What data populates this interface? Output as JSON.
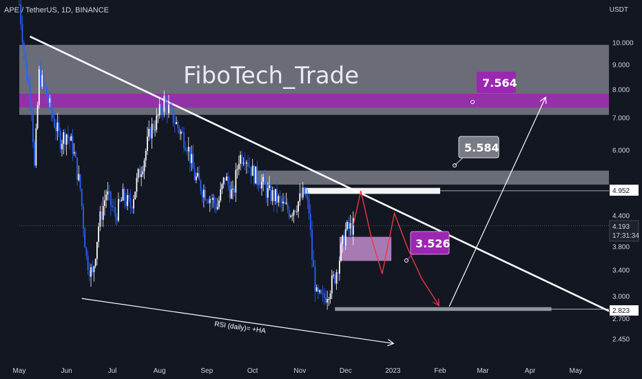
{
  "header": {
    "symbol": "APE / TetherUS, 1D, BINANCE",
    "currency": "USDT"
  },
  "watermark": "FiboTech_Trade",
  "colors": {
    "background": "#131722",
    "candle_up": "#ffffff",
    "candle_down": "#2962ff",
    "trendline": "#ffffff",
    "projection": "#f23645",
    "purple": "#9c27b0",
    "gray_zone": "#b2b5be"
  },
  "annotations": {
    "target_top": "7.564",
    "target_mid": "5.584",
    "target_low": "3.526",
    "rsi_note": "RSI (daily)= +HA"
  },
  "price_labels": {
    "level_4952": "4.952",
    "last_price": "4.193",
    "countdown": "17:31:34",
    "level_2823": "2.823"
  },
  "chart_data": {
    "type": "candlestick",
    "symbol": "APE / TetherUS",
    "interval": "1D",
    "exchange": "BINANCE",
    "y_scale": "log",
    "ylim": [
      2.3,
      14.5
    ],
    "x_range": [
      "2022-05-01",
      "2023-05-31"
    ],
    "x_ticks": [
      {
        "date": "2022-05-01",
        "label": "May"
      },
      {
        "date": "2022-06-01",
        "label": "Jun"
      },
      {
        "date": "2022-07-01",
        "label": "Jul"
      },
      {
        "date": "2022-08-01",
        "label": "Aug"
      },
      {
        "date": "2022-09-01",
        "label": "Sep"
      },
      {
        "date": "2022-10-01",
        "label": "Oct"
      },
      {
        "date": "2022-11-01",
        "label": "Nov"
      },
      {
        "date": "2022-12-01",
        "label": "Dec"
      },
      {
        "date": "2023-01-01",
        "label": "2023"
      },
      {
        "date": "2023-02-01",
        "label": "Feb"
      },
      {
        "date": "2023-03-01",
        "label": "Mar"
      },
      {
        "date": "2023-04-01",
        "label": "Apr"
      },
      {
        "date": "2023-05-01",
        "label": "May"
      }
    ],
    "y_ticks": [
      {
        "value": 10.0,
        "label": "10.000"
      },
      {
        "value": 9.0,
        "label": "9.000"
      },
      {
        "value": 8.0,
        "label": "8.000"
      },
      {
        "value": 7.0,
        "label": "7.000"
      },
      {
        "value": 6.0,
        "label": "6.000"
      },
      {
        "value": 4.4,
        "label": "4.400"
      },
      {
        "value": 3.8,
        "label": "3.800"
      },
      {
        "value": 3.4,
        "label": "3.400"
      },
      {
        "value": 3.0,
        "label": "3.000"
      },
      {
        "value": 2.7,
        "label": "2.700"
      },
      {
        "value": 2.45,
        "label": "2.450"
      }
    ],
    "price_path": [
      [
        "2022-05-01",
        12.0
      ],
      [
        "2022-05-05",
        9.0
      ],
      [
        "2022-05-09",
        7.5
      ],
      [
        "2022-05-11",
        5.5
      ],
      [
        "2022-05-14",
        8.6
      ],
      [
        "2022-05-18",
        8.0
      ],
      [
        "2022-05-23",
        7.0
      ],
      [
        "2022-05-28",
        6.3
      ],
      [
        "2022-06-01",
        6.5
      ],
      [
        "2022-06-05",
        6.1
      ],
      [
        "2022-06-10",
        5.0
      ],
      [
        "2022-06-14",
        3.6
      ],
      [
        "2022-06-18",
        3.3
      ],
      [
        "2022-06-22",
        4.2
      ],
      [
        "2022-06-27",
        4.9
      ],
      [
        "2022-07-03",
        4.4
      ],
      [
        "2022-07-08",
        4.8
      ],
      [
        "2022-07-13",
        4.6
      ],
      [
        "2022-07-18",
        5.3
      ],
      [
        "2022-07-22",
        5.8
      ],
      [
        "2022-07-26",
        6.6
      ],
      [
        "2022-07-30",
        6.9
      ],
      [
        "2022-08-04",
        7.6
      ],
      [
        "2022-08-09",
        7.1
      ],
      [
        "2022-08-14",
        6.6
      ],
      [
        "2022-08-19",
        6.2
      ],
      [
        "2022-08-24",
        5.3
      ],
      [
        "2022-08-29",
        5.0
      ],
      [
        "2022-09-03",
        4.8
      ],
      [
        "2022-09-08",
        4.6
      ],
      [
        "2022-09-13",
        5.3
      ],
      [
        "2022-09-18",
        4.8
      ],
      [
        "2022-09-22",
        5.8
      ],
      [
        "2022-09-26",
        5.9
      ],
      [
        "2022-10-01",
        5.4
      ],
      [
        "2022-10-06",
        5.2
      ],
      [
        "2022-10-11",
        4.9
      ],
      [
        "2022-10-16",
        4.8
      ],
      [
        "2022-10-21",
        4.6
      ],
      [
        "2022-10-26",
        4.5
      ],
      [
        "2022-10-31",
        4.7
      ],
      [
        "2022-11-04",
        4.9
      ],
      [
        "2022-11-07",
        4.5
      ],
      [
        "2022-11-09",
        3.6
      ],
      [
        "2022-11-12",
        3.0
      ],
      [
        "2022-11-16",
        2.95
      ],
      [
        "2022-11-20",
        3.1
      ],
      [
        "2022-11-24",
        3.3
      ],
      [
        "2022-11-27",
        3.6
      ],
      [
        "2022-12-01",
        4.1
      ],
      [
        "2022-12-04",
        4.15
      ],
      [
        "2022-12-06",
        4.19
      ]
    ],
    "zones": [
      {
        "name": "upper-resistance",
        "from_price": 7.1,
        "to_price": 9.9,
        "start": "2022-05-01",
        "end": "2023-05-31",
        "color": "#b2b5be"
      },
      {
        "name": "purple-band",
        "from_price": 7.35,
        "to_price": 7.85,
        "start": "2022-05-01",
        "end": "2023-05-31",
        "color": "#9c27b0"
      },
      {
        "name": "mid-resistance",
        "from_price": 5.1,
        "to_price": 5.45,
        "start": "2022-10-03",
        "end": "2023-05-31",
        "color": "#b2b5be"
      },
      {
        "name": "white-band",
        "from_price": 4.88,
        "to_price": 5.02,
        "start": "2022-11-04",
        "end": "2023-02-01",
        "color": "#ffffff"
      },
      {
        "name": "purple-box",
        "from_price": 3.55,
        "to_price": 3.98,
        "start": "2022-11-27",
        "end": "2022-12-31",
        "color": "#ce93d8"
      },
      {
        "name": "support-bar",
        "from_price": 2.8,
        "to_price": 2.85,
        "start": "2022-11-24",
        "end": "2023-04-15",
        "color": "#b2b5be"
      }
    ],
    "horizontal_lines": [
      {
        "price": 4.952,
        "start": "2023-02-01"
      },
      {
        "price": 4.193,
        "start": "2022-05-01"
      },
      {
        "price": 2.823,
        "start": "2023-04-15"
      }
    ],
    "trendlines": [
      {
        "name": "descending-resistance",
        "from": [
          "2022-05-08",
          10.3
        ],
        "to": [
          "2023-05-31",
          2.72
        ]
      },
      {
        "name": "rsi-divergence",
        "from": [
          "2022-06-11",
          2.97
        ],
        "to": [
          "2023-01-01",
          2.4
        ],
        "arrow": true
      }
    ],
    "projection_path": [
      [
        "2022-12-06",
        4.2
      ],
      [
        "2022-12-11",
        4.95
      ],
      [
        "2022-12-18",
        3.95
      ],
      [
        "2022-12-25",
        3.34
      ],
      [
        "2023-01-02",
        4.45
      ],
      [
        "2023-01-11",
        3.75
      ],
      [
        "2023-01-20",
        3.26
      ],
      [
        "2023-01-31",
        2.88
      ]
    ],
    "target_path": [
      [
        "2023-02-07",
        2.86
      ],
      [
        "2023-04-11",
        7.7
      ]
    ]
  }
}
